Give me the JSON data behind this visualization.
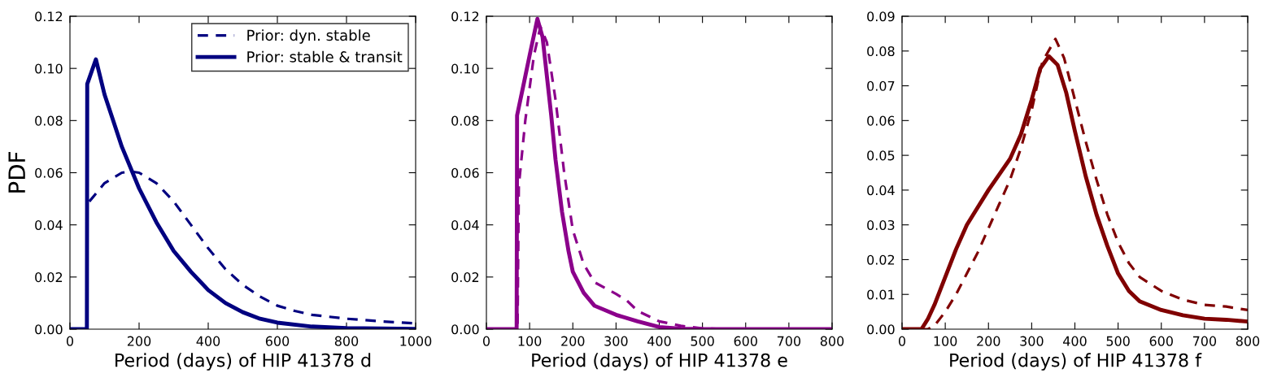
{
  "chart_data": [
    {
      "type": "line",
      "xlabel": "Period (days) of HIP 41378 d",
      "ylabel": "PDF",
      "xlim": [
        0,
        1000
      ],
      "ylim": [
        0,
        0.12
      ],
      "xticks": [
        0,
        200,
        400,
        600,
        800,
        1000
      ],
      "yticks": [
        {
          "value": 0,
          "label": "0.00"
        },
        {
          "value": 0.02,
          "label": "0.02"
        },
        {
          "value": 0.04,
          "label": "0.04"
        },
        {
          "value": 0.06,
          "label": "0.06"
        },
        {
          "value": 0.08,
          "label": "0.08"
        },
        {
          "value": 0.1,
          "label": "0.10"
        },
        {
          "value": 0.12,
          "label": "0.12"
        }
      ],
      "grid": false,
      "legend": "top right",
      "series": [
        {
          "name": "Prior: dyn. stable",
          "color": "#000080",
          "line_style": "dashed",
          "x": [
            0,
            49,
            50,
            75,
            100,
            150,
            175,
            200,
            250,
            300,
            350,
            400,
            450,
            500,
            550,
            600,
            650,
            700,
            800,
            900,
            1000
          ],
          "values": [
            0,
            0,
            0.048,
            0.052,
            0.056,
            0.06,
            0.0605,
            0.06,
            0.056,
            0.049,
            0.04,
            0.031,
            0.023,
            0.017,
            0.0125,
            0.009,
            0.007,
            0.0055,
            0.004,
            0.003,
            0.0022
          ]
        },
        {
          "name": "Prior: stable & transit",
          "color": "#000080",
          "line_style": "solid",
          "x": [
            0,
            49,
            50,
            75,
            100,
            125,
            150,
            200,
            250,
            300,
            350,
            400,
            450,
            500,
            550,
            600,
            700,
            800,
            1000
          ],
          "values": [
            0,
            0,
            0.094,
            0.1035,
            0.09,
            0.08,
            0.07,
            0.054,
            0.041,
            0.03,
            0.022,
            0.015,
            0.01,
            0.0065,
            0.004,
            0.0025,
            0.001,
            0.0004,
            0.0001
          ]
        }
      ]
    },
    {
      "type": "line",
      "xlabel": "Period (days) of HIP 41378 e",
      "xlim": [
        0,
        800
      ],
      "ylim": [
        0,
        0.12
      ],
      "xticks": [
        0,
        100,
        200,
        300,
        400,
        500,
        600,
        700,
        800
      ],
      "yticks": [
        {
          "value": 0,
          "label": "0.00"
        },
        {
          "value": 0.02,
          "label": "0.02"
        },
        {
          "value": 0.04,
          "label": "0.04"
        },
        {
          "value": 0.06,
          "label": "0.06"
        },
        {
          "value": 0.08,
          "label": "0.08"
        },
        {
          "value": 0.1,
          "label": "0.10"
        },
        {
          "value": 0.12,
          "label": "0.12"
        }
      ],
      "grid": false,
      "series": [
        {
          "color": "#8b008b",
          "line_style": "dashed",
          "x": [
            0,
            72,
            75,
            90,
            110,
            125,
            140,
            160,
            180,
            200,
            225,
            250,
            300,
            325,
            350,
            400,
            450,
            500,
            550,
            800
          ],
          "values": [
            0,
            0,
            0.055,
            0.08,
            0.105,
            0.116,
            0.11,
            0.088,
            0.06,
            0.038,
            0.025,
            0.018,
            0.0135,
            0.011,
            0.007,
            0.003,
            0.0013,
            0.0003,
            0,
            0
          ]
        },
        {
          "color": "#8b008b",
          "line_style": "solid",
          "x": [
            0,
            70,
            71,
            85,
            100,
            118,
            130,
            150,
            160,
            175,
            190,
            200,
            225,
            250,
            300,
            350,
            400,
            450,
            500,
            800
          ],
          "values": [
            0,
            0,
            0.082,
            0.093,
            0.105,
            0.119,
            0.112,
            0.082,
            0.065,
            0.045,
            0.03,
            0.022,
            0.014,
            0.009,
            0.0055,
            0.003,
            0.0008,
            0.0002,
            0,
            0
          ]
        }
      ]
    },
    {
      "type": "line",
      "xlabel": "Period (days) of HIP 41378 f",
      "xlim": [
        0,
        800
      ],
      "ylim": [
        0,
        0.09
      ],
      "xticks": [
        0,
        100,
        200,
        300,
        400,
        500,
        600,
        700,
        800
      ],
      "yticks": [
        {
          "value": 0,
          "label": "0.00"
        },
        {
          "value": 0.01,
          "label": "0.01"
        },
        {
          "value": 0.02,
          "label": "0.02"
        },
        {
          "value": 0.03,
          "label": "0.03"
        },
        {
          "value": 0.04,
          "label": "0.04"
        },
        {
          "value": 0.05,
          "label": "0.05"
        },
        {
          "value": 0.06,
          "label": "0.06"
        },
        {
          "value": 0.07,
          "label": "0.07"
        },
        {
          "value": 0.08,
          "label": "0.08"
        },
        {
          "value": 0.09,
          "label": "0.09"
        }
      ],
      "grid": false,
      "series": [
        {
          "color": "#800000",
          "line_style": "dashed",
          "x": [
            0,
            60,
            75,
            100,
            125,
            150,
            175,
            200,
            225,
            250,
            275,
            300,
            325,
            355,
            375,
            400,
            425,
            450,
            475,
            500,
            525,
            550,
            600,
            650,
            700,
            750,
            800
          ],
          "values": [
            0,
            0,
            0.001,
            0.005,
            0.01,
            0.016,
            0.022,
            0.029,
            0.036,
            0.043,
            0.052,
            0.063,
            0.077,
            0.0835,
            0.078,
            0.066,
            0.054,
            0.043,
            0.033,
            0.025,
            0.019,
            0.015,
            0.011,
            0.0085,
            0.007,
            0.0065,
            0.0055
          ]
        },
        {
          "color": "#800000",
          "line_style": "solid",
          "x": [
            0,
            45,
            60,
            75,
            100,
            125,
            150,
            175,
            200,
            225,
            250,
            275,
            300,
            320,
            340,
            360,
            380,
            400,
            425,
            450,
            475,
            500,
            525,
            550,
            600,
            650,
            700,
            750,
            800
          ],
          "values": [
            0,
            0,
            0.003,
            0.007,
            0.015,
            0.023,
            0.03,
            0.035,
            0.04,
            0.0445,
            0.049,
            0.056,
            0.066,
            0.075,
            0.0785,
            0.076,
            0.068,
            0.057,
            0.044,
            0.033,
            0.024,
            0.016,
            0.011,
            0.008,
            0.0055,
            0.004,
            0.003,
            0.0027,
            0.0022
          ]
        }
      ]
    }
  ]
}
